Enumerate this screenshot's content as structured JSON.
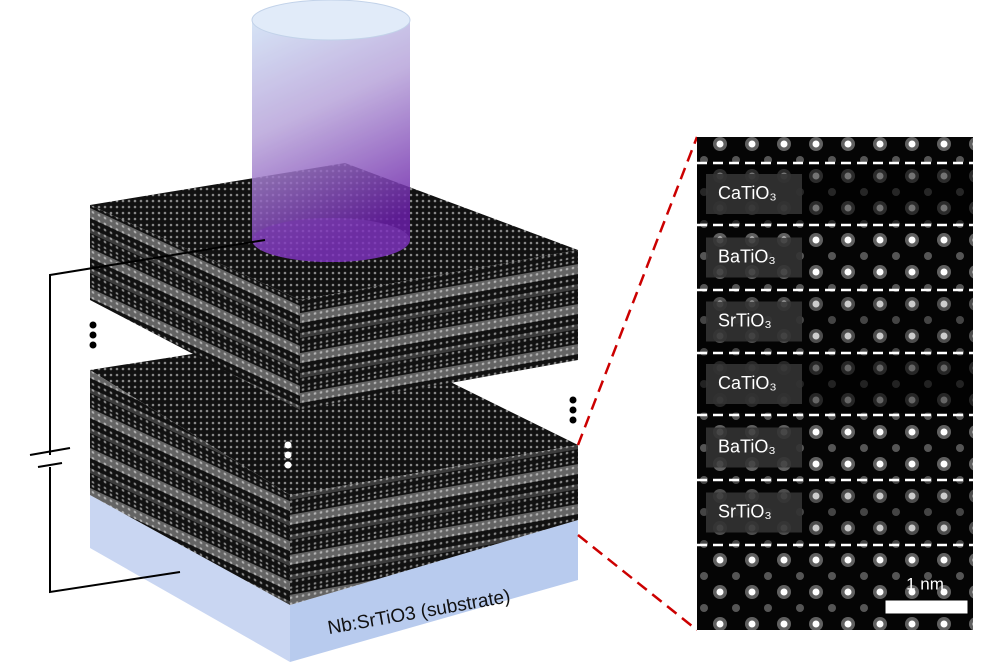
{
  "substrate_label": "Nb:SrTiO3 (substrate)",
  "layers": [
    "CaTiO₃",
    "BaTiO₃",
    "SrTiO₃",
    "CaTiO₃",
    "BaTiO₃",
    "SrTiO₃"
  ],
  "scale_bar": "1 nm"
}
